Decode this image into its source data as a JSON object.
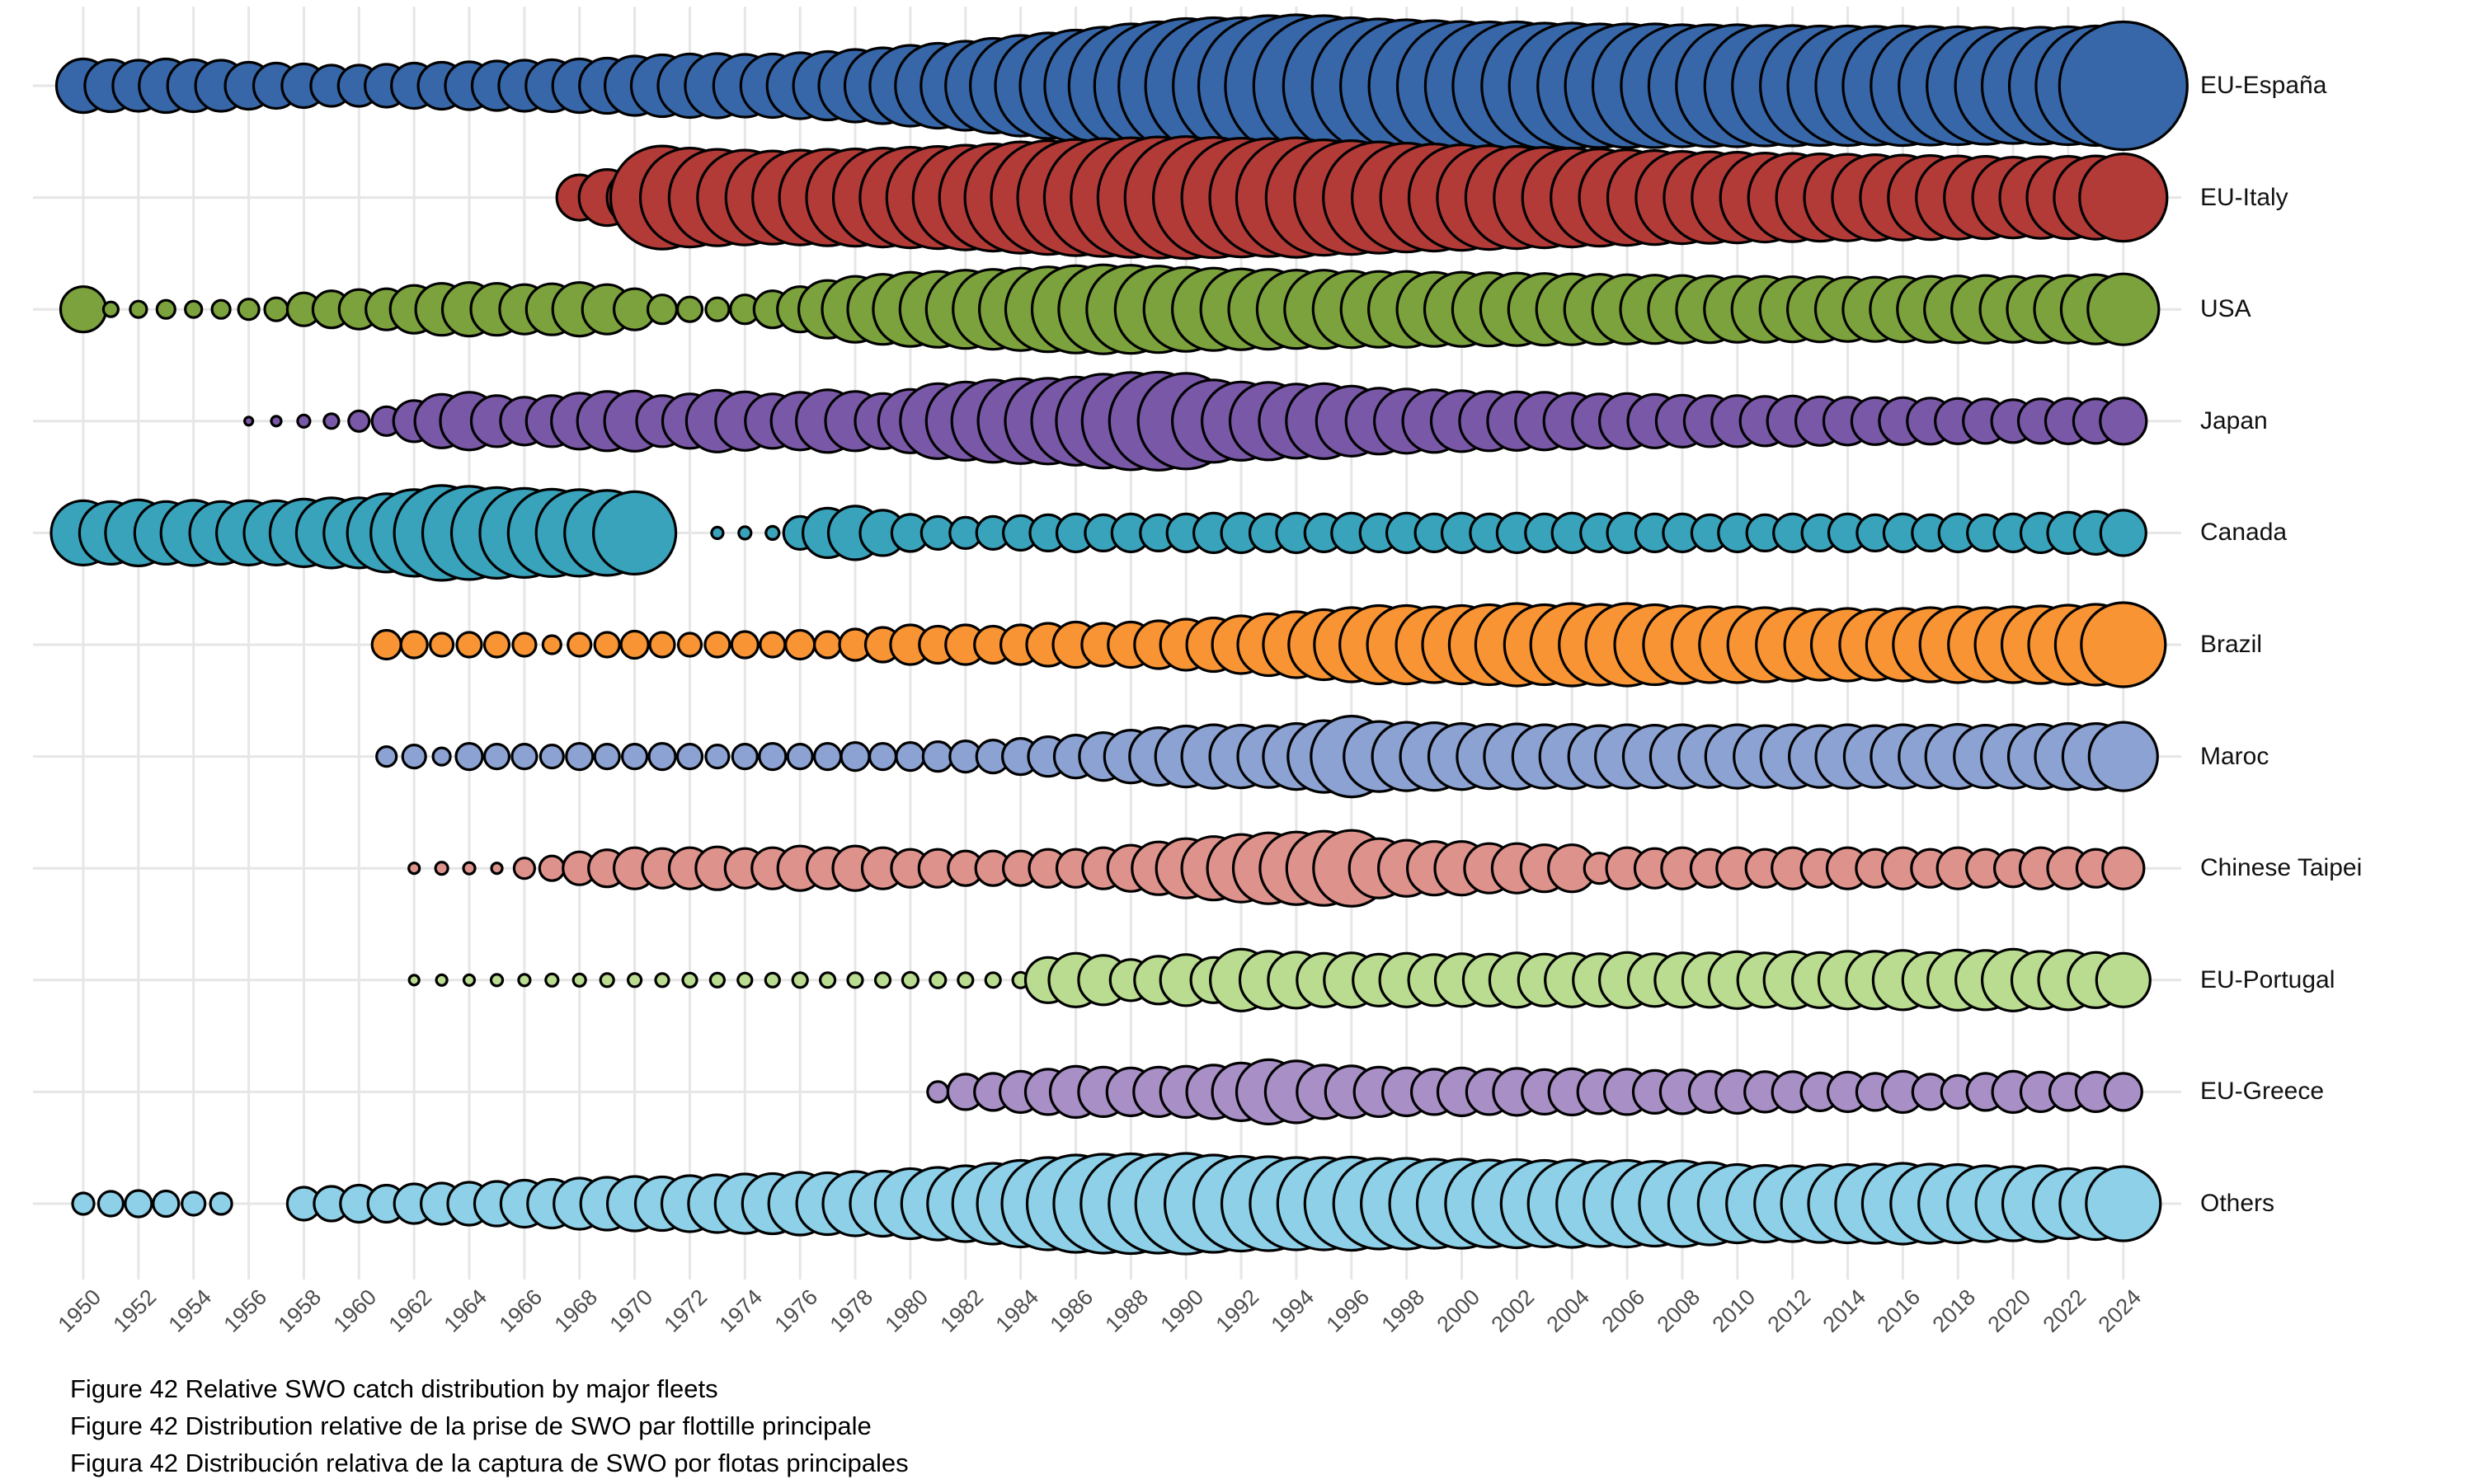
{
  "figure": {
    "captions": {
      "line1": "Figure 42 Relative SWO catch distribution by major fleets",
      "line2": "Figure 42 Distribution relative de la prise de SWO par flottille principale",
      "line3": "Figura 42 Distribución relativa de la captura de SWO por flotas principales"
    }
  },
  "chart_data": {
    "type": "bubble",
    "title": "Relative SWO catch distribution by major fleets",
    "x_axis": {
      "start_year": 1950,
      "end_year": 2024,
      "tick_interval_years": 2,
      "tick_angle_deg": 45
    },
    "y_axis": {
      "categories": [
        "EU-España",
        "EU-Italy",
        "USA",
        "Japan",
        "Canada",
        "Brazil",
        "Maroc",
        "Chinese Taipei",
        "EU-Portugal",
        "EU-Greece",
        "Others"
      ],
      "labels_position": "right"
    },
    "grid": {
      "vertical_gridlines": "every 2 years",
      "horizontal_gridlines": "one per fleet row",
      "color": "#E6E6E6"
    },
    "size_encoding": "values are bubble diameters in px at 3000x1800; bubble area is proportional to the fleet's relative catch share that year; 0 = no catch reported",
    "fleets": [
      {
        "label": "EU-España",
        "color": "#3767A8",
        "start_year": 1950,
        "sizes": [
          65,
          63,
          62,
          65,
          63,
          62,
          57,
          55,
          53,
          50,
          50,
          52,
          55,
          57,
          58,
          60,
          62,
          63,
          65,
          67,
          72,
          75,
          77,
          78,
          76,
          77,
          80,
          83,
          88,
          92,
          98,
          103,
          108,
          115,
          122,
          128,
          135,
          142,
          150,
          155,
          163,
          165,
          165,
          170,
          172,
          170,
          165,
          162,
          160,
          158,
          156,
          155,
          155,
          152,
          152,
          150,
          150,
          150,
          148,
          148,
          148,
          146,
          146,
          145,
          145,
          144,
          145,
          144,
          143,
          142,
          140,
          142,
          143,
          145,
          155
        ]
      },
      {
        "label": "EU-Italy",
        "color": "#B23B38",
        "start_year": 1968,
        "sizes": [
          55,
          68,
          67,
          125,
          120,
          117,
          115,
          113,
          115,
          117,
          118,
          120,
          122,
          124,
          127,
          130,
          135,
          138,
          141,
          143,
          145,
          147,
          148,
          146,
          144,
          143,
          145,
          140,
          138,
          135,
          132,
          130,
          128,
          126,
          124,
          122,
          120,
          118,
          116,
          114,
          112,
          111,
          110,
          108,
          107,
          106,
          105,
          104,
          103,
          102,
          101,
          100,
          98,
          99,
          100,
          101,
          106
        ]
      },
      {
        "label": "USA",
        "color": "#7CA23D",
        "start_year": 1950,
        "sizes": [
          55,
          18,
          20,
          22,
          20,
          22,
          25,
          28,
          40,
          45,
          48,
          50,
          58,
          63,
          65,
          63,
          60,
          62,
          65,
          60,
          50,
          35,
          30,
          28,
          35,
          45,
          55,
          70,
          80,
          85,
          90,
          92,
          95,
          97,
          100,
          103,
          106,
          108,
          107,
          105,
          102,
          100,
          98,
          97,
          95,
          95,
          93,
          92,
          92,
          90,
          90,
          89,
          88,
          87,
          86,
          85,
          84,
          83,
          82,
          81,
          80,
          80,
          79,
          79,
          78,
          78,
          79,
          80,
          81,
          82,
          80,
          81,
          82,
          84,
          86
        ]
      },
      {
        "label": "Japan",
        "color": "#7A58A8",
        "start_year": 1956,
        "sizes": [
          10,
          12,
          15,
          18,
          25,
          35,
          50,
          65,
          70,
          62,
          58,
          62,
          68,
          72,
          73,
          62,
          66,
          75,
          71,
          66,
          70,
          76,
          72,
          67,
          77,
          91,
          95,
          100,
          103,
          104,
          107,
          114,
          118,
          119,
          116,
          100,
          95,
          94,
          90,
          91,
          85,
          80,
          78,
          76,
          74,
          72,
          71,
          70,
          68,
          66,
          67,
          65,
          63,
          62,
          62,
          60,
          61,
          59,
          58,
          57,
          57,
          56,
          55,
          54,
          52,
          54,
          55,
          54,
          56
        ]
      },
      {
        "label": "Canada",
        "color": "#39A3BC",
        "start_year": 1950,
        "sizes": [
          78,
          76,
          80,
          76,
          79,
          76,
          78,
          78,
          82,
          85,
          85,
          95,
          105,
          115,
          113,
          110,
          108,
          106,
          105,
          103,
          100,
          0,
          0,
          14,
          15,
          16,
          40,
          60,
          65,
          55,
          45,
          40,
          38,
          40,
          42,
          44,
          46,
          44,
          46,
          44,
          46,
          48,
          48,
          46,
          48,
          46,
          48,
          46,
          48,
          46,
          48,
          46,
          48,
          46,
          48,
          46,
          48,
          46,
          46,
          44,
          46,
          44,
          46,
          44,
          46,
          44,
          46,
          44,
          46,
          44,
          46,
          48,
          50,
          52,
          55
        ]
      },
      {
        "label": "Brazil",
        "color": "#F89434",
        "start_year": 1961,
        "sizes": [
          35,
          32,
          28,
          30,
          30,
          28,
          22,
          28,
          30,
          33,
          30,
          28,
          30,
          32,
          30,
          35,
          32,
          38,
          42,
          48,
          45,
          48,
          45,
          48,
          52,
          55,
          52,
          55,
          58,
          62,
          65,
          70,
          75,
          80,
          85,
          90,
          95,
          95,
          92,
          95,
          97,
          100,
          97,
          100,
          98,
          100,
          97,
          94,
          92,
          92,
          90,
          88,
          86,
          88,
          86,
          88,
          90,
          92,
          90,
          92,
          94,
          96,
          98,
          102
        ]
      },
      {
        "label": "Maroc",
        "color": "#8BA2D2",
        "start_year": 1961,
        "sizes": [
          24,
          28,
          21,
          32,
          30,
          30,
          28,
          32,
          30,
          30,
          32,
          30,
          28,
          30,
          32,
          30,
          32,
          34,
          32,
          34,
          36,
          38,
          40,
          44,
          48,
          52,
          58,
          64,
          70,
          74,
          77,
          76,
          75,
          80,
          87,
          98,
          85,
          83,
          82,
          80,
          78,
          79,
          77,
          78,
          75,
          77,
          76,
          77,
          75,
          77,
          75,
          77,
          75,
          77,
          75,
          77,
          76,
          78,
          76,
          77,
          78,
          80,
          80,
          83
        ]
      },
      {
        "label": "Chinese Taipei",
        "color": "#DE928C",
        "start_year": 1962,
        "sizes": [
          13,
          15,
          14,
          13,
          25,
          30,
          40,
          45,
          50,
          48,
          50,
          52,
          48,
          50,
          54,
          50,
          54,
          50,
          46,
          46,
          42,
          42,
          42,
          46,
          46,
          50,
          56,
          64,
          72,
          77,
          82,
          86,
          88,
          90,
          92,
          72,
          68,
          65,
          65,
          60,
          60,
          57,
          57,
          37,
          50,
          48,
          50,
          46,
          50,
          46,
          50,
          46,
          50,
          46,
          50,
          46,
          50,
          46,
          45,
          50,
          50,
          46,
          50
        ]
      },
      {
        "label": "EU-Portugal",
        "color": "#BADC90",
        "start_year": 1962,
        "sizes": [
          12,
          13,
          13,
          14,
          14,
          15,
          15,
          16,
          16,
          16,
          17,
          17,
          17,
          17,
          18,
          18,
          18,
          18,
          19,
          19,
          18,
          18,
          19,
          55,
          65,
          60,
          50,
          58,
          62,
          55,
          75,
          70,
          68,
          65,
          66,
          63,
          65,
          62,
          64,
          63,
          66,
          63,
          65,
          64,
          67,
          64,
          66,
          66,
          69,
          66,
          69,
          67,
          70,
          70,
          72,
          67,
          73,
          72,
          75,
          70,
          72,
          67,
          65
        ]
      },
      {
        "label": "EU-Greece",
        "color": "#A890C6",
        "start_year": 1981,
        "sizes": [
          25,
          43,
          45,
          50,
          55,
          62,
          60,
          58,
          60,
          62,
          65,
          70,
          78,
          75,
          65,
          63,
          60,
          58,
          55,
          58,
          55,
          57,
          54,
          56,
          53,
          55,
          52,
          53,
          50,
          52,
          49,
          49,
          46,
          48,
          45,
          50,
          43,
          40,
          45,
          50,
          48,
          45,
          48,
          45
        ]
      },
      {
        "label": "Others",
        "color": "#8DD0E8",
        "start_year": 1950,
        "sizes": [
          26,
          30,
          32,
          31,
          28,
          26,
          0,
          0,
          40,
          42,
          45,
          45,
          48,
          50,
          52,
          54,
          57,
          59,
          62,
          64,
          66,
          65,
          68,
          70,
          72,
          73,
          76,
          75,
          78,
          79,
          85,
          88,
          92,
          98,
          105,
          112,
          118,
          120,
          121,
          120,
          122,
          118,
          115,
          114,
          112,
          112,
          113,
          110,
          110,
          108,
          108,
          106,
          107,
          105,
          106,
          104,
          105,
          103,
          104,
          100,
          95,
          93,
          92,
          94,
          95,
          96,
          98,
          96,
          95,
          92,
          90,
          92,
          85,
          87,
          90
        ]
      }
    ],
    "legend_position": "none"
  },
  "layout_colors": {
    "background": "#FFFFFF",
    "gridline": "#E6E6E6",
    "bubble_outline": "#000000",
    "tick_text": "#4D4D4D",
    "row_label_text": "#111111",
    "caption_text": "#000000"
  }
}
